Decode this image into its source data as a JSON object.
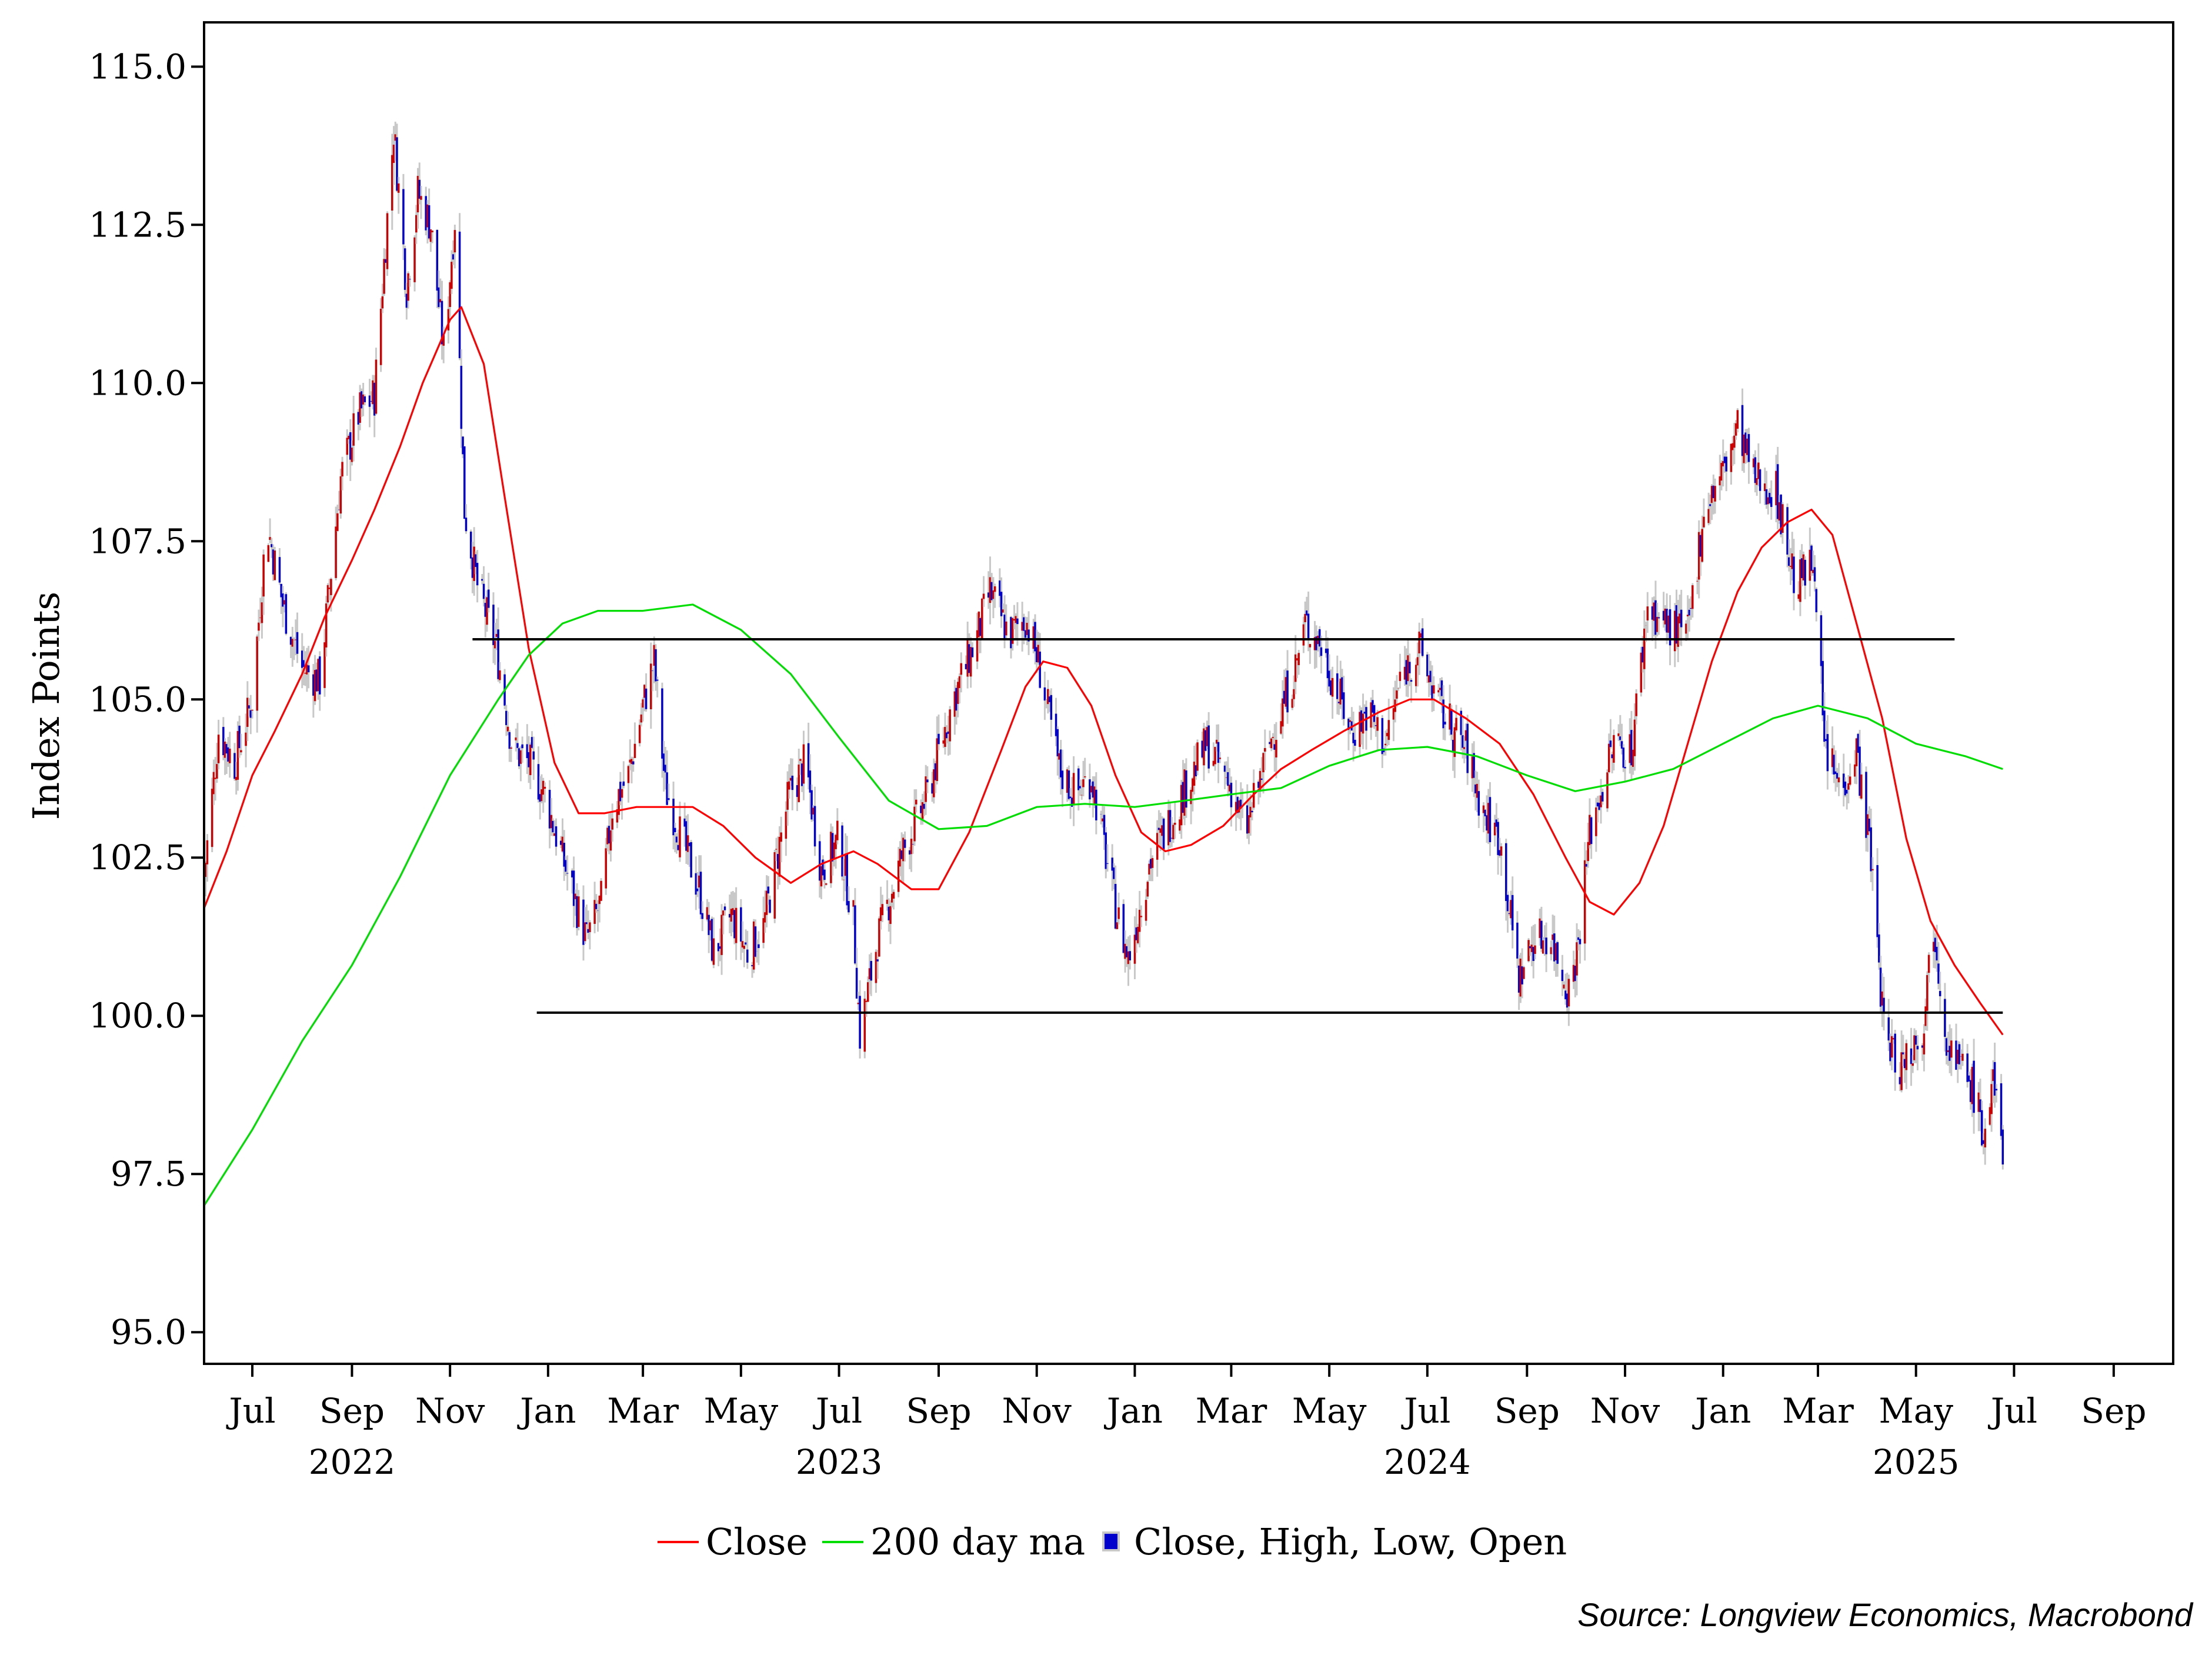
{
  "chart_data": {
    "type": "line",
    "ylabel": "Index Points",
    "ylim": [
      94.5,
      115.7
    ],
    "y_ticks": [
      "95.0",
      "97.5",
      "100.0",
      "102.5",
      "105.0",
      "107.5",
      "110.0",
      "112.5",
      "115.0"
    ],
    "x_range": [
      "2022-06-01",
      "2025-10-08"
    ],
    "month_ticks": [
      {
        "date": "2022-07-01",
        "label": "Jul"
      },
      {
        "date": "2022-09-01",
        "label": "Sep"
      },
      {
        "date": "2022-11-01",
        "label": "Nov"
      },
      {
        "date": "2023-01-01",
        "label": "Jan"
      },
      {
        "date": "2023-03-01",
        "label": "Mar"
      },
      {
        "date": "2023-05-01",
        "label": "May"
      },
      {
        "date": "2023-07-01",
        "label": "Jul"
      },
      {
        "date": "2023-09-01",
        "label": "Sep"
      },
      {
        "date": "2023-11-01",
        "label": "Nov"
      },
      {
        "date": "2024-01-01",
        "label": "Jan"
      },
      {
        "date": "2024-03-01",
        "label": "Mar"
      },
      {
        "date": "2024-05-01",
        "label": "May"
      },
      {
        "date": "2024-07-01",
        "label": "Jul"
      },
      {
        "date": "2024-09-01",
        "label": "Sep"
      },
      {
        "date": "2024-11-01",
        "label": "Nov"
      },
      {
        "date": "2025-01-01",
        "label": "Jan"
      },
      {
        "date": "2025-03-01",
        "label": "Mar"
      },
      {
        "date": "2025-05-01",
        "label": "May"
      },
      {
        "date": "2025-07-01",
        "label": "Jul"
      },
      {
        "date": "2025-09-01",
        "label": "Sep"
      }
    ],
    "year_labels": [
      {
        "date": "2022-09-01",
        "label": "2022"
      },
      {
        "date": "2023-07-01",
        "label": "2023"
      },
      {
        "date": "2024-07-01",
        "label": "2024"
      },
      {
        "date": "2025-05-01",
        "label": "2025"
      }
    ],
    "grid": false,
    "legend_position": "bottom-center",
    "series": [
      {
        "name": "Close",
        "color": "#ff0000",
        "style": "moving-average",
        "points": [
          [
            "2022-06-01",
            101.7
          ],
          [
            "2022-06-15",
            102.6
          ],
          [
            "2022-07-01",
            103.8
          ],
          [
            "2022-07-15",
            104.5
          ],
          [
            "2022-08-01",
            105.4
          ],
          [
            "2022-08-15",
            106.3
          ],
          [
            "2022-09-01",
            107.2
          ],
          [
            "2022-09-15",
            108.0
          ],
          [
            "2022-10-01",
            109.0
          ],
          [
            "2022-10-15",
            110.0
          ],
          [
            "2022-11-01",
            111.0
          ],
          [
            "2022-11-08",
            111.2
          ],
          [
            "2022-11-22",
            110.3
          ],
          [
            "2022-12-05",
            108.2
          ],
          [
            "2022-12-20",
            105.8
          ],
          [
            "2023-01-05",
            104.0
          ],
          [
            "2023-01-20",
            103.2
          ],
          [
            "2023-02-05",
            103.2
          ],
          [
            "2023-02-25",
            103.3
          ],
          [
            "2023-03-15",
            103.3
          ],
          [
            "2023-04-01",
            103.3
          ],
          [
            "2023-04-20",
            103.0
          ],
          [
            "2023-05-10",
            102.5
          ],
          [
            "2023-06-01",
            102.1
          ],
          [
            "2023-06-20",
            102.4
          ],
          [
            "2023-07-10",
            102.6
          ],
          [
            "2023-07-25",
            102.4
          ],
          [
            "2023-08-15",
            102.0
          ],
          [
            "2023-09-01",
            102.0
          ],
          [
            "2023-09-20",
            102.9
          ],
          [
            "2023-10-10",
            104.2
          ],
          [
            "2023-10-25",
            105.2
          ],
          [
            "2023-11-05",
            105.6
          ],
          [
            "2023-11-20",
            105.5
          ],
          [
            "2023-12-05",
            104.9
          ],
          [
            "2023-12-20",
            103.8
          ],
          [
            "2024-01-05",
            102.9
          ],
          [
            "2024-01-20",
            102.6
          ],
          [
            "2024-02-05",
            102.7
          ],
          [
            "2024-02-25",
            103.0
          ],
          [
            "2024-03-15",
            103.5
          ],
          [
            "2024-04-01",
            103.9
          ],
          [
            "2024-04-20",
            104.2
          ],
          [
            "2024-05-10",
            104.5
          ],
          [
            "2024-06-01",
            104.8
          ],
          [
            "2024-06-20",
            105.0
          ],
          [
            "2024-07-05",
            105.0
          ],
          [
            "2024-07-25",
            104.7
          ],
          [
            "2024-08-15",
            104.3
          ],
          [
            "2024-09-05",
            103.5
          ],
          [
            "2024-09-25",
            102.5
          ],
          [
            "2024-10-10",
            101.8
          ],
          [
            "2024-10-25",
            101.6
          ],
          [
            "2024-11-10",
            102.1
          ],
          [
            "2024-11-25",
            103.0
          ],
          [
            "2024-12-10",
            104.3
          ],
          [
            "2024-12-25",
            105.6
          ],
          [
            "2025-01-10",
            106.7
          ],
          [
            "2025-01-25",
            107.4
          ],
          [
            "2025-02-10",
            107.8
          ],
          [
            "2025-02-25",
            108.0
          ],
          [
            "2025-03-10",
            107.6
          ],
          [
            "2025-03-25",
            106.2
          ],
          [
            "2025-04-10",
            104.7
          ],
          [
            "2025-04-25",
            102.8
          ],
          [
            "2025-05-10",
            101.5
          ],
          [
            "2025-05-25",
            100.8
          ],
          [
            "2025-06-10",
            100.2
          ],
          [
            "2025-06-24",
            99.7
          ]
        ]
      },
      {
        "name": "200 day ma",
        "color": "#00dd00",
        "style": "moving-average",
        "points": [
          [
            "2022-06-01",
            97.0
          ],
          [
            "2022-07-01",
            98.2
          ],
          [
            "2022-08-01",
            99.6
          ],
          [
            "2022-09-01",
            100.8
          ],
          [
            "2022-10-01",
            102.2
          ],
          [
            "2022-11-01",
            103.8
          ],
          [
            "2022-12-01",
            105.0
          ],
          [
            "2022-12-20",
            105.7
          ],
          [
            "2023-01-10",
            106.2
          ],
          [
            "2023-02-01",
            106.4
          ],
          [
            "2023-03-01",
            106.4
          ],
          [
            "2023-04-01",
            106.5
          ],
          [
            "2023-05-01",
            106.1
          ],
          [
            "2023-06-01",
            105.4
          ],
          [
            "2023-07-01",
            104.4
          ],
          [
            "2023-08-01",
            103.4
          ],
          [
            "2023-09-01",
            102.95
          ],
          [
            "2023-10-01",
            103.0
          ],
          [
            "2023-11-01",
            103.3
          ],
          [
            "2023-12-01",
            103.35
          ],
          [
            "2024-01-01",
            103.3
          ],
          [
            "2024-02-01",
            103.4
          ],
          [
            "2024-03-01",
            103.5
          ],
          [
            "2024-04-01",
            103.6
          ],
          [
            "2024-05-01",
            103.95
          ],
          [
            "2024-06-01",
            104.2
          ],
          [
            "2024-07-01",
            104.25
          ],
          [
            "2024-08-01",
            104.1
          ],
          [
            "2024-09-01",
            103.8
          ],
          [
            "2024-10-01",
            103.55
          ],
          [
            "2024-11-01",
            103.7
          ],
          [
            "2024-12-01",
            103.9
          ],
          [
            "2025-01-01",
            104.3
          ],
          [
            "2025-02-01",
            104.7
          ],
          [
            "2025-03-01",
            104.9
          ],
          [
            "2025-04-01",
            104.7
          ],
          [
            "2025-05-01",
            104.3
          ],
          [
            "2025-06-01",
            104.1
          ],
          [
            "2025-06-24",
            103.9
          ]
        ]
      },
      {
        "name": "Close, High, Low, Open",
        "color": "#0000cc",
        "style": "daily-bars",
        "up_color": "#cc0000",
        "down_color": "#0000cc",
        "range_color": "#c8c8c8",
        "path": [
          [
            "2022-06-01",
            102.2
          ],
          [
            "2022-06-10",
            104.5
          ],
          [
            "2022-06-20",
            104.0
          ],
          [
            "2022-07-01",
            105.0
          ],
          [
            "2022-07-10",
            107.8
          ],
          [
            "2022-07-20",
            106.5
          ],
          [
            "2022-08-01",
            105.5
          ],
          [
            "2022-08-12",
            105.3
          ],
          [
            "2022-08-25",
            108.5
          ],
          [
            "2022-09-05",
            109.5
          ],
          [
            "2022-09-15",
            109.8
          ],
          [
            "2022-09-27",
            114.0
          ],
          [
            "2022-10-05",
            111.5
          ],
          [
            "2022-10-12",
            113.0
          ],
          [
            "2022-10-20",
            112.5
          ],
          [
            "2022-10-28",
            110.5
          ],
          [
            "2022-11-04",
            112.6
          ],
          [
            "2022-11-10",
            108.0
          ],
          [
            "2022-11-18",
            106.8
          ],
          [
            "2022-11-30",
            105.8
          ],
          [
            "2022-12-10",
            104.2
          ],
          [
            "2022-12-20",
            104.0
          ],
          [
            "2022-12-30",
            103.5
          ],
          [
            "2023-01-10",
            102.5
          ],
          [
            "2023-01-25",
            101.2
          ],
          [
            "2023-02-03",
            101.8
          ],
          [
            "2023-02-10",
            103.3
          ],
          [
            "2023-02-20",
            103.8
          ],
          [
            "2023-03-01",
            104.9
          ],
          [
            "2023-03-08",
            105.6
          ],
          [
            "2023-03-15",
            103.6
          ],
          [
            "2023-03-25",
            102.8
          ],
          [
            "2023-04-05",
            102.0
          ],
          [
            "2023-04-14",
            101.0
          ],
          [
            "2023-04-25",
            101.6
          ],
          [
            "2023-05-05",
            101.0
          ],
          [
            "2023-05-15",
            101.4
          ],
          [
            "2023-05-31",
            103.5
          ],
          [
            "2023-06-10",
            104.0
          ],
          [
            "2023-06-20",
            102.3
          ],
          [
            "2023-07-01",
            102.8
          ],
          [
            "2023-07-10",
            101.5
          ],
          [
            "2023-07-14",
            99.7
          ],
          [
            "2023-07-25",
            101.2
          ],
          [
            "2023-08-10",
            102.6
          ],
          [
            "2023-08-25",
            103.5
          ],
          [
            "2023-09-10",
            105.0
          ],
          [
            "2023-09-25",
            106.0
          ],
          [
            "2023-10-03",
            106.7
          ],
          [
            "2023-10-15",
            106.0
          ],
          [
            "2023-10-25",
            106.3
          ],
          [
            "2023-11-02",
            105.6
          ],
          [
            "2023-11-15",
            103.9
          ],
          [
            "2023-11-25",
            103.5
          ],
          [
            "2023-12-05",
            103.8
          ],
          [
            "2023-12-20",
            101.7
          ],
          [
            "2023-12-28",
            100.9
          ],
          [
            "2024-01-10",
            102.4
          ],
          [
            "2024-01-25",
            103.2
          ],
          [
            "2024-02-05",
            103.8
          ],
          [
            "2024-02-15",
            104.3
          ],
          [
            "2024-03-01",
            103.6
          ],
          [
            "2024-03-10",
            102.9
          ],
          [
            "2024-03-25",
            104.3
          ],
          [
            "2024-04-10",
            105.5
          ],
          [
            "2024-04-16",
            106.2
          ],
          [
            "2024-04-25",
            105.9
          ],
          [
            "2024-05-05",
            105.2
          ],
          [
            "2024-05-15",
            104.5
          ],
          [
            "2024-05-25",
            104.8
          ],
          [
            "2024-06-05",
            104.3
          ],
          [
            "2024-06-15",
            105.4
          ],
          [
            "2024-06-26",
            105.8
          ],
          [
            "2024-07-10",
            104.8
          ],
          [
            "2024-07-25",
            104.2
          ],
          [
            "2024-08-05",
            103.2
          ],
          [
            "2024-08-15",
            102.8
          ],
          [
            "2024-08-27",
            100.6
          ],
          [
            "2024-09-05",
            101.2
          ],
          [
            "2024-09-15",
            101.3
          ],
          [
            "2024-09-27",
            100.4
          ],
          [
            "2024-10-02",
            101.0
          ],
          [
            "2024-10-10",
            102.9
          ],
          [
            "2024-10-25",
            104.3
          ],
          [
            "2024-11-05",
            104.2
          ],
          [
            "2024-11-15",
            106.5
          ],
          [
            "2024-11-25",
            106.2
          ],
          [
            "2024-12-10",
            106.0
          ],
          [
            "2024-12-20",
            108.0
          ],
          [
            "2025-01-01",
            108.6
          ],
          [
            "2025-01-10",
            109.3
          ],
          [
            "2025-01-20",
            108.5
          ],
          [
            "2025-02-03",
            108.3
          ],
          [
            "2025-02-15",
            106.8
          ],
          [
            "2025-02-27",
            107.2
          ],
          [
            "2025-03-05",
            104.2
          ],
          [
            "2025-03-15",
            103.6
          ],
          [
            "2025-03-25",
            104.2
          ],
          [
            "2025-04-03",
            102.5
          ],
          [
            "2025-04-11",
            99.8
          ],
          [
            "2025-04-20",
            99.2
          ],
          [
            "2025-04-28",
            99.5
          ],
          [
            "2025-05-05",
            99.8
          ],
          [
            "2025-05-12",
            101.5
          ],
          [
            "2025-05-20",
            99.7
          ],
          [
            "2025-05-28",
            99.2
          ],
          [
            "2025-06-05",
            98.9
          ],
          [
            "2025-06-12",
            98.1
          ],
          [
            "2025-06-18",
            98.9
          ],
          [
            "2025-06-24",
            97.9
          ]
        ]
      },
      {
        "name": "",
        "color": "#000000",
        "style": "horizontal-reference",
        "points": [
          [
            "2022-11-15",
            105.95
          ],
          [
            "2025-05-25",
            105.95
          ]
        ]
      },
      {
        "name": "",
        "color": "#000000",
        "style": "horizontal-reference",
        "points": [
          [
            "2022-12-25",
            100.05
          ],
          [
            "2025-06-24",
            100.05
          ]
        ]
      }
    ],
    "legend": [
      {
        "label": "Close",
        "color": "#ff0000",
        "marker": "line"
      },
      {
        "label": "200 day ma",
        "color": "#00dd00",
        "marker": "line"
      },
      {
        "label": "Close, High, Low, Open",
        "color": "#0000cc",
        "marker": "square"
      }
    ],
    "source": "Source: Longview Economics, Macrobond"
  }
}
